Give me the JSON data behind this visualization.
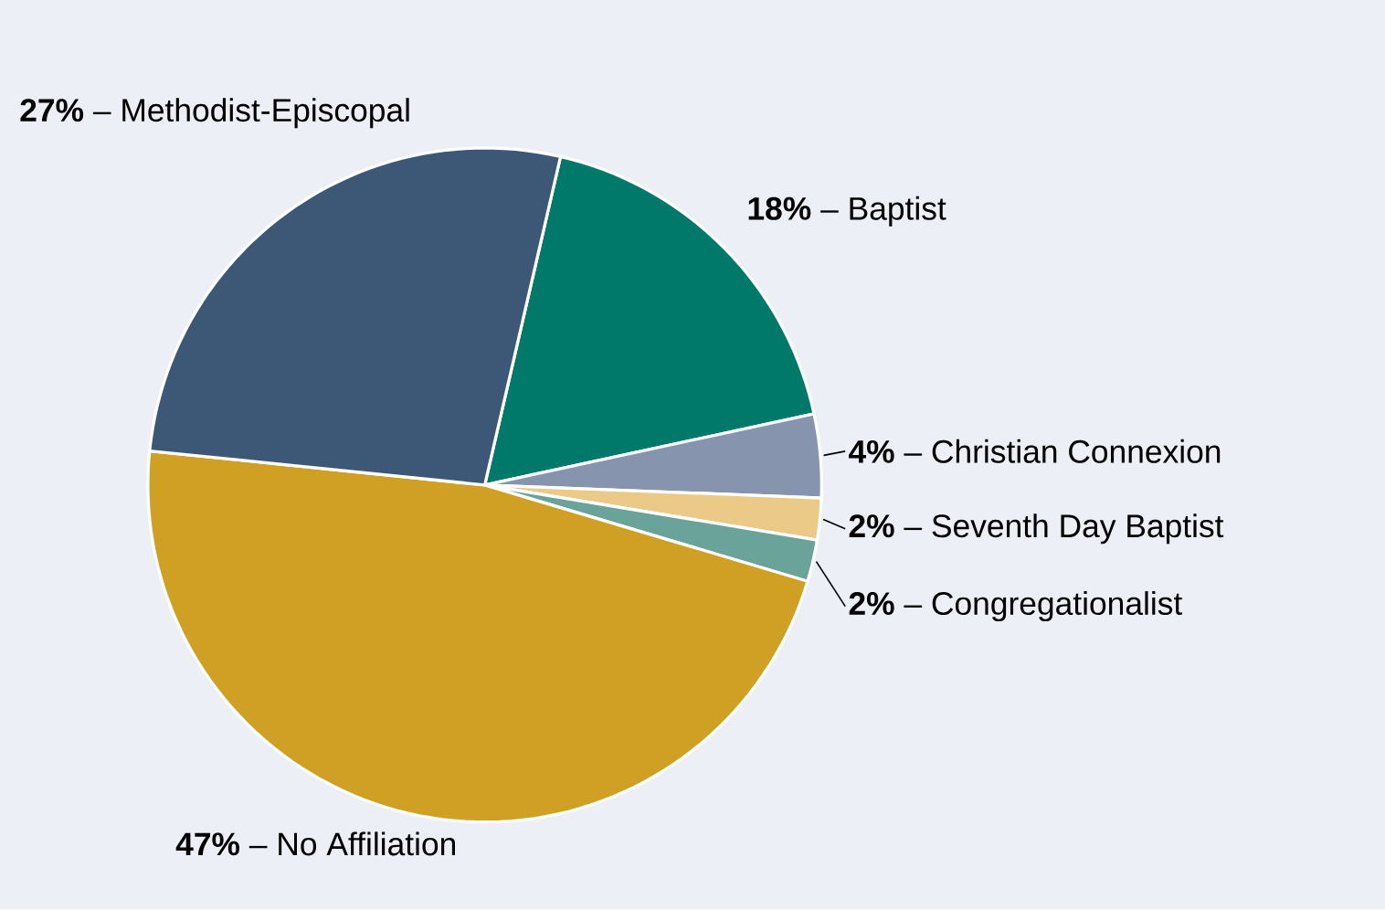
{
  "chart_data": {
    "type": "pie",
    "categories": [
      "Baptist",
      "Christian Connexion",
      "Seventh Day Baptist",
      "Congregationalist",
      "No Affiliation",
      "Methodist-Episcopal"
    ],
    "values": [
      18,
      4,
      2,
      2,
      47,
      27
    ],
    "value_labels": [
      "**18%** –",
      "**4%** –",
      "**2%** –",
      "**2%** –",
      "**47%** –",
      "**27%** –"
    ],
    "colors": [
      "#00786a",
      "#8794ad",
      "#ebc987",
      "#6aa399",
      "#cfa024",
      "#3d5877"
    ]
  }
}
